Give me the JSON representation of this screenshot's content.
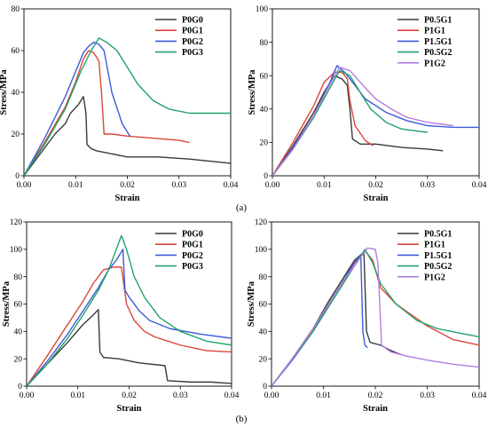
{
  "captions": [
    "(a)",
    "(b)"
  ],
  "chart_data": [
    {
      "type": "line",
      "xlabel": "Strain",
      "ylabel": "Stress/MPa",
      "xlim": [
        0,
        0.04
      ],
      "ylim": [
        0,
        80
      ],
      "x_ticks": [
        "0.00",
        "0.01",
        "0.02",
        "0.03",
        "0.04"
      ],
      "y_ticks": [
        "0",
        "20",
        "40",
        "60",
        "80"
      ],
      "legend_position": "top-right",
      "series": [
        {
          "name": "P0G0",
          "color": "#3a3a3a",
          "x": [
            0,
            0.003,
            0.006,
            0.008,
            0.009,
            0.0105,
            0.0115,
            0.012,
            0.0122,
            0.013,
            0.014,
            0.016,
            0.02,
            0.026,
            0.032,
            0.036,
            0.04
          ],
          "y": [
            0,
            10,
            20,
            25,
            30,
            34,
            38,
            30,
            15,
            13,
            12,
            11,
            9,
            9,
            8,
            7,
            6
          ]
        },
        {
          "name": "P0G1",
          "color": "#d9473a",
          "x": [
            0,
            0.004,
            0.008,
            0.01,
            0.0115,
            0.0125,
            0.0135,
            0.0145,
            0.015,
            0.0155,
            0.017,
            0.02,
            0.025,
            0.03,
            0.032
          ],
          "y": [
            0,
            16,
            33,
            45,
            56,
            60,
            59,
            55,
            40,
            20,
            20,
            19,
            18,
            17,
            16
          ]
        },
        {
          "name": "P0G2",
          "color": "#3b5bd9",
          "x": [
            0,
            0.004,
            0.008,
            0.01,
            0.0115,
            0.0125,
            0.0135,
            0.0145,
            0.0155,
            0.017,
            0.019,
            0.0205
          ],
          "y": [
            0,
            18,
            38,
            50,
            59,
            62,
            64,
            63,
            60,
            40,
            25,
            19
          ]
        },
        {
          "name": "P0G3",
          "color": "#22a26a",
          "x": [
            0,
            0.004,
            0.008,
            0.011,
            0.013,
            0.0145,
            0.016,
            0.018,
            0.02,
            0.022,
            0.025,
            0.028,
            0.032,
            0.036,
            0.04
          ],
          "y": [
            0,
            15,
            32,
            50,
            60,
            66,
            64,
            60,
            52,
            44,
            36,
            32,
            30,
            30,
            30
          ]
        }
      ]
    },
    {
      "type": "line",
      "xlabel": "Strain",
      "ylabel": "Stress/MPa",
      "xlim": [
        0,
        0.04
      ],
      "ylim": [
        0,
        100
      ],
      "x_ticks": [
        "0.00",
        "0.01",
        "0.02",
        "0.03",
        "0.04"
      ],
      "y_ticks": [
        "0",
        "20",
        "40",
        "60",
        "80",
        "100"
      ],
      "legend_position": "top-right",
      "series": [
        {
          "name": "P0.5G1",
          "color": "#3a3a3a",
          "x": [
            0,
            0.004,
            0.008,
            0.01,
            0.012,
            0.0135,
            0.0145,
            0.015,
            0.0155,
            0.017,
            0.02,
            0.025,
            0.03,
            0.033
          ],
          "y": [
            0,
            18,
            38,
            50,
            60,
            58,
            54,
            40,
            22,
            19,
            19,
            17,
            16,
            15
          ]
        },
        {
          "name": "P1G1",
          "color": "#d9473a",
          "x": [
            0,
            0.004,
            0.008,
            0.01,
            0.012,
            0.0135,
            0.0145,
            0.015,
            0.016,
            0.018,
            0.0195
          ],
          "y": [
            0,
            20,
            42,
            56,
            62,
            62,
            58,
            45,
            30,
            21,
            18
          ]
        },
        {
          "name": "P1.5G1",
          "color": "#3b5bd9",
          "x": [
            0,
            0.004,
            0.008,
            0.011,
            0.0125,
            0.014,
            0.016,
            0.018,
            0.022,
            0.026,
            0.03,
            0.035,
            0.04
          ],
          "y": [
            0,
            17,
            36,
            55,
            66,
            62,
            54,
            46,
            38,
            33,
            30,
            29,
            29
          ]
        },
        {
          "name": "P0.5G2",
          "color": "#22a26a",
          "x": [
            0,
            0.004,
            0.008,
            0.011,
            0.013,
            0.015,
            0.017,
            0.019,
            0.022,
            0.025,
            0.03
          ],
          "y": [
            0,
            16,
            35,
            52,
            63,
            60,
            50,
            40,
            32,
            28,
            26
          ]
        },
        {
          "name": "P1G2",
          "color": "#b27de0",
          "x": [
            0,
            0.004,
            0.008,
            0.011,
            0.013,
            0.015,
            0.017,
            0.02,
            0.023,
            0.026,
            0.03,
            0.035
          ],
          "y": [
            0,
            16,
            36,
            54,
            65,
            63,
            56,
            46,
            40,
            35,
            32,
            30
          ]
        }
      ]
    },
    {
      "type": "line",
      "xlabel": "Strain",
      "ylabel": "Stress/MPa",
      "xlim": [
        0,
        0.04
      ],
      "ylim": [
        0,
        120
      ],
      "x_ticks": [
        "0.00",
        "0.01",
        "0.02",
        "0.03",
        "0.04"
      ],
      "y_ticks": [
        "0",
        "20",
        "40",
        "60",
        "80",
        "100",
        "120"
      ],
      "legend_position": "top-right",
      "series": [
        {
          "name": "P0G0",
          "color": "#3a3a3a",
          "x": [
            0,
            0.004,
            0.008,
            0.011,
            0.013,
            0.014,
            0.0143,
            0.015,
            0.018,
            0.022,
            0.027,
            0.0275,
            0.032,
            0.036,
            0.04
          ],
          "y": [
            0,
            16,
            32,
            45,
            52,
            56,
            25,
            21,
            20,
            17,
            15,
            4,
            3,
            3,
            2
          ]
        },
        {
          "name": "P0G1",
          "color": "#d9473a",
          "x": [
            0,
            0.004,
            0.008,
            0.011,
            0.013,
            0.015,
            0.017,
            0.0185,
            0.0195,
            0.021,
            0.023,
            0.025,
            0.03,
            0.035,
            0.04
          ],
          "y": [
            0,
            22,
            45,
            62,
            75,
            85,
            87,
            87,
            60,
            48,
            40,
            36,
            30,
            26,
            25
          ]
        },
        {
          "name": "P0G2",
          "color": "#3b5bd9",
          "x": [
            0,
            0.004,
            0.008,
            0.011,
            0.014,
            0.016,
            0.0175,
            0.0188,
            0.0192,
            0.02,
            0.022,
            0.024,
            0.028,
            0.034,
            0.04
          ],
          "y": [
            0,
            18,
            38,
            55,
            72,
            85,
            92,
            100,
            70,
            65,
            55,
            48,
            42,
            38,
            35
          ]
        },
        {
          "name": "P0G3",
          "color": "#22a26a",
          "x": [
            0,
            0.004,
            0.008,
            0.011,
            0.014,
            0.016,
            0.0185,
            0.0195,
            0.021,
            0.023,
            0.026,
            0.03,
            0.035,
            0.04
          ],
          "y": [
            0,
            16,
            35,
            52,
            70,
            85,
            110,
            100,
            80,
            65,
            50,
            40,
            33,
            30
          ]
        }
      ]
    },
    {
      "type": "line",
      "xlabel": "Strain",
      "ylabel": "Stress/MPa",
      "xlim": [
        0,
        0.04
      ],
      "ylim": [
        0,
        120
      ],
      "x_ticks": [
        "0.00",
        "0.01",
        "0.02",
        "0.03",
        "0.04"
      ],
      "y_ticks": [
        "0",
        "20",
        "40",
        "60",
        "80",
        "100",
        "120"
      ],
      "legend_position": "top-right",
      "series": [
        {
          "name": "P0.5G1",
          "color": "#3a3a3a",
          "x": [
            0,
            0.004,
            0.008,
            0.011,
            0.014,
            0.016,
            0.0178,
            0.0183,
            0.019,
            0.021,
            0.023,
            0.025
          ],
          "y": [
            0,
            20,
            42,
            62,
            80,
            92,
            98,
            40,
            32,
            30,
            26,
            23
          ]
        },
        {
          "name": "P1G1",
          "color": "#d9473a",
          "x": [
            0,
            0.004,
            0.008,
            0.011,
            0.014,
            0.016,
            0.018,
            0.0195,
            0.021,
            0.024,
            0.027,
            0.03,
            0.035,
            0.04
          ],
          "y": [
            0,
            20,
            42,
            60,
            78,
            90,
            99,
            92,
            72,
            60,
            52,
            44,
            34,
            30
          ]
        },
        {
          "name": "P1.5G1",
          "color": "#3b5bd9",
          "x": [
            0,
            0.004,
            0.008,
            0.011,
            0.014,
            0.016,
            0.0172,
            0.0176,
            0.018,
            0.0185
          ],
          "y": [
            0,
            19,
            40,
            60,
            78,
            91,
            96,
            40,
            30,
            28
          ]
        },
        {
          "name": "P0.5G2",
          "color": "#22a26a",
          "x": [
            0,
            0.004,
            0.008,
            0.011,
            0.014,
            0.016,
            0.018,
            0.0195,
            0.021,
            0.024,
            0.028,
            0.032,
            0.036,
            0.04
          ],
          "y": [
            0,
            20,
            40,
            58,
            76,
            88,
            100,
            90,
            75,
            60,
            48,
            42,
            39,
            36
          ]
        },
        {
          "name": "P1G2",
          "color": "#b27de0",
          "x": [
            0,
            0.004,
            0.008,
            0.011,
            0.014,
            0.016,
            0.0185,
            0.02,
            0.0205,
            0.0212,
            0.023,
            0.026,
            0.03,
            0.035,
            0.04
          ],
          "y": [
            0,
            20,
            42,
            60,
            78,
            88,
            101,
            100,
            90,
            30,
            25,
            22,
            19,
            16,
            14
          ]
        }
      ]
    }
  ]
}
